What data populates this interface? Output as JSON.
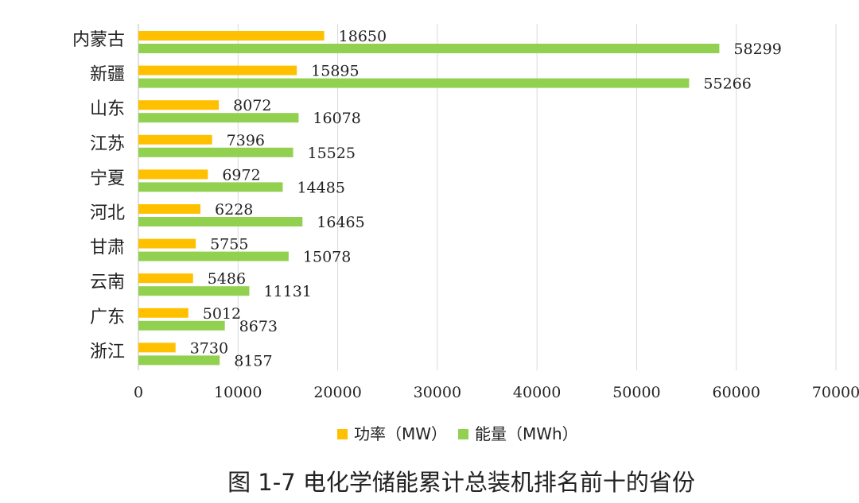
{
  "caption": "图 1-7 电化学储能累计总装机排名前十的省份",
  "chart_data": {
    "type": "bar",
    "orientation": "horizontal",
    "categories": [
      "内蒙古",
      "新疆",
      "山东",
      "江苏",
      "宁夏",
      "河北",
      "甘肃",
      "云南",
      "广东",
      "浙江"
    ],
    "series": [
      {
        "name": "功率（MW）",
        "color": "#FFC000",
        "values": [
          18650,
          15895,
          8072,
          7396,
          6972,
          6228,
          5755,
          5486,
          5012,
          3730
        ]
      },
      {
        "name": "能量（MWh）",
        "color": "#92D050",
        "values": [
          58299,
          55266,
          16078,
          15525,
          14485,
          16465,
          15078,
          11131,
          8673,
          8157
        ]
      }
    ],
    "xlim": [
      0,
      70000
    ],
    "xticks": [
      0,
      10000,
      20000,
      30000,
      40000,
      50000,
      60000,
      70000
    ],
    "grid": true,
    "legend_position": "bottom"
  }
}
